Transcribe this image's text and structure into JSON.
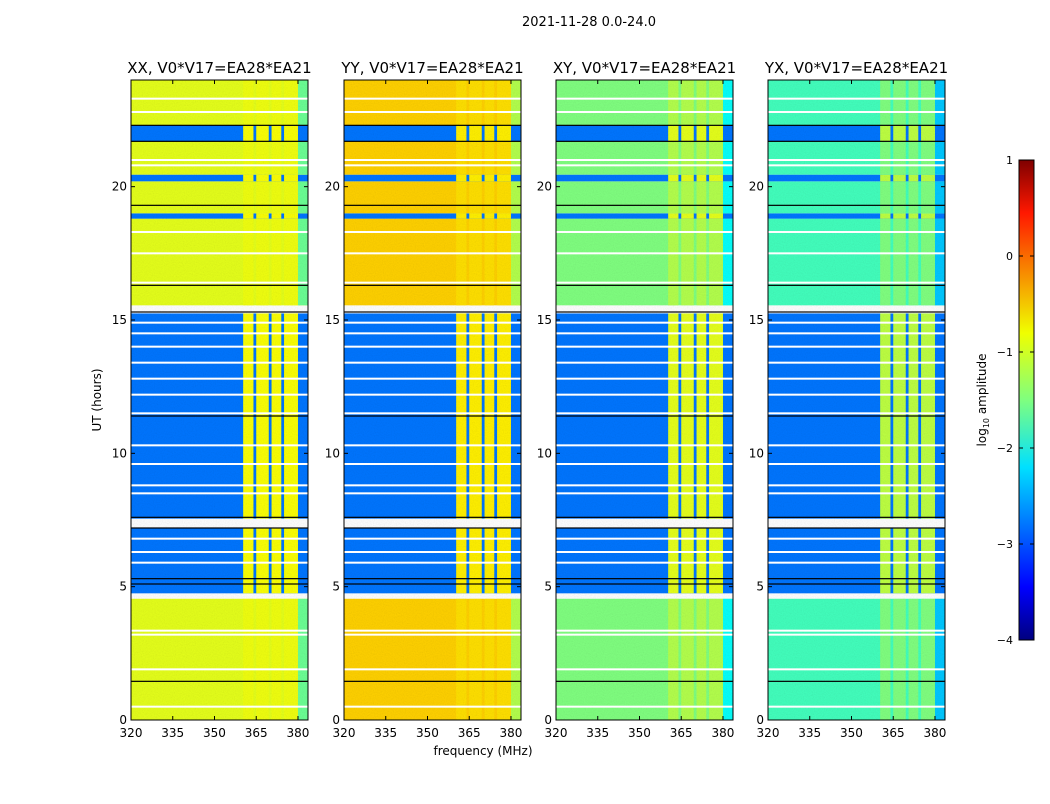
{
  "chart_data": {
    "type": "heatmap",
    "title": "2021-11-28 0.0-24.0",
    "xlabel": "frequency (MHz)",
    "ylabel": "UT (hours)",
    "xlim": [
      320,
      383.6
    ],
    "ylim": [
      0,
      24
    ],
    "xticks": [
      320,
      335,
      350,
      365,
      380
    ],
    "yticks": [
      0,
      5,
      10,
      15,
      20
    ],
    "colorbar": {
      "label": "log10 amplitude",
      "label_main": "log",
      "label_sub": "10",
      "label_rest": " amplitude",
      "range": [
        -4,
        1
      ],
      "ticks": [
        -4,
        -3,
        -2,
        -1,
        0,
        1
      ],
      "colormap": "jet"
    },
    "panels": [
      {
        "title": "XX, V0*V17=EA28*EA21",
        "good_level": -1.0,
        "rfi_level": -0.9,
        "bad_level": -2.8
      },
      {
        "title": "YY, V0*V17=EA28*EA21",
        "good_level": -0.65,
        "rfi_level": -0.8,
        "bad_level": -2.8
      },
      {
        "title": "XY, V0*V17=EA28*EA21",
        "good_level": -1.5,
        "rfi_level": -1.0,
        "bad_level": -2.8
      },
      {
        "title": "YX, V0*V17=EA28*EA21",
        "good_level": -1.8,
        "rfi_level": -1.2,
        "bad_level": -2.8
      }
    ],
    "time_segments": [
      {
        "start": 0,
        "end": 4.55,
        "state": "good"
      },
      {
        "start": 4.55,
        "end": 4.75,
        "state": "flagged"
      },
      {
        "start": 4.75,
        "end": 7.2,
        "state": "bad"
      },
      {
        "start": 7.2,
        "end": 7.55,
        "state": "flagged"
      },
      {
        "start": 7.55,
        "end": 15.25,
        "state": "bad"
      },
      {
        "start": 15.25,
        "end": 15.55,
        "state": "flagged"
      },
      {
        "start": 15.55,
        "end": 18.8,
        "state": "good"
      },
      {
        "start": 18.8,
        "end": 19.0,
        "state": "bad"
      },
      {
        "start": 19.0,
        "end": 20.2,
        "state": "good"
      },
      {
        "start": 20.2,
        "end": 20.45,
        "state": "bad"
      },
      {
        "start": 20.45,
        "end": 21.7,
        "state": "good"
      },
      {
        "start": 21.7,
        "end": 22.3,
        "state": "bad"
      },
      {
        "start": 22.3,
        "end": 24,
        "state": "good"
      }
    ],
    "rfi_columns": [
      [
        360.3,
        364
      ],
      [
        365,
        369.5
      ],
      [
        370.5,
        374
      ],
      [
        375,
        380
      ]
    ],
    "edge_band": [
      380,
      383.6
    ],
    "flag_lines_hours": [
      0.5,
      1.9,
      3.2,
      3.35,
      5.9,
      6.3,
      6.8,
      8.5,
      8.8,
      9.6,
      10.3,
      11.5,
      12.2,
      12.8,
      13.4,
      14.0,
      14.5,
      14.9,
      16.4,
      17.5,
      18.3,
      20.8,
      21.0,
      22.8,
      23.3
    ],
    "black_lines_hours": [
      1.45,
      5.1,
      5.3,
      7.2,
      7.6,
      11.4,
      15.3,
      16.3,
      19.3,
      21.7,
      22.3
    ]
  }
}
